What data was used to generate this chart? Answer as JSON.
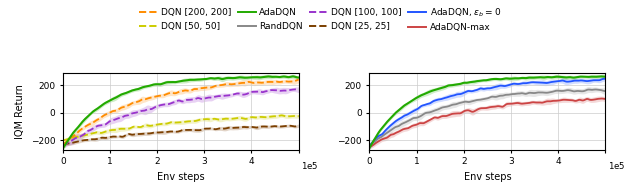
{
  "ylabel": "IQM Return",
  "xlabel": "Env steps",
  "xlim": [
    0,
    500000
  ],
  "ylim_left": [
    -270,
    290
  ],
  "ylim_right": [
    -270,
    290
  ],
  "yticks": [
    -200,
    0,
    200
  ],
  "colors": {
    "dqn200": "#FF8C00",
    "dqn100": "#9933CC",
    "dqn50": "#CCCC00",
    "dqn25": "#7B3F00",
    "ada": "#22AA00",
    "adaeps": "#2255FF",
    "rand": "#888888",
    "adamax": "#CC4444"
  },
  "background_color": "#ffffff",
  "grid_color": "#cccccc"
}
